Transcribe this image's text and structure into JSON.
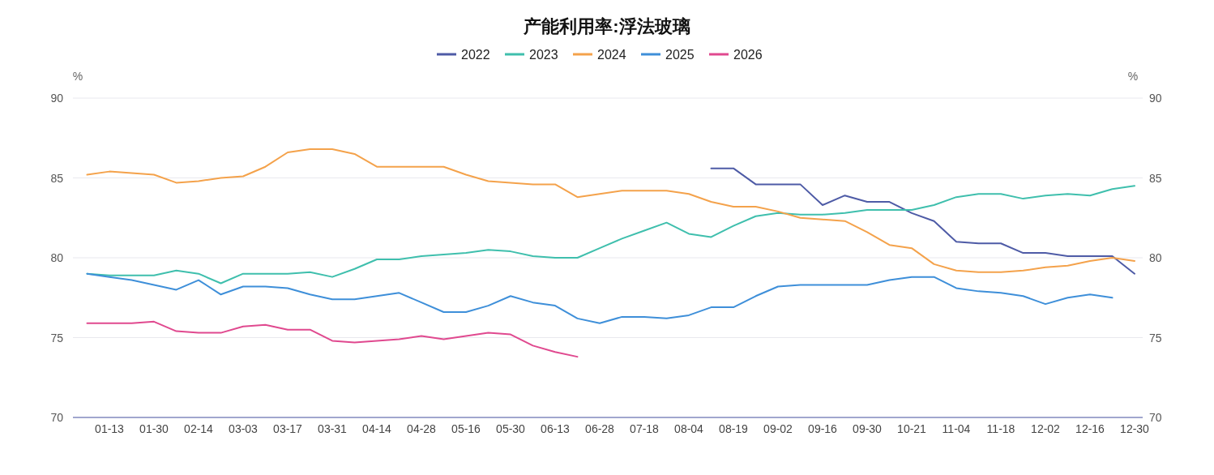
{
  "chart_data": {
    "type": "line",
    "title": "产能利用率:浮法玻璃",
    "categories": [
      null,
      "01-13",
      null,
      "01-30",
      null,
      "02-14",
      null,
      "03-03",
      null,
      "03-17",
      null,
      "03-31",
      null,
      "04-14",
      null,
      "04-28",
      null,
      "05-16",
      null,
      "05-30",
      null,
      "06-13",
      null,
      "06-28",
      null,
      "07-18",
      null,
      "08-04",
      null,
      "08-19",
      null,
      "09-02",
      null,
      "09-16",
      null,
      "09-30",
      null,
      "10-21",
      null,
      "11-04",
      null,
      "11-18",
      null,
      "12-02",
      null,
      "12-16",
      null,
      "12-30"
    ],
    "series": [
      {
        "name": "2022",
        "color": "#4e5ba6",
        "values": [
          null,
          null,
          null,
          null,
          null,
          null,
          null,
          null,
          null,
          null,
          null,
          null,
          null,
          null,
          null,
          null,
          null,
          null,
          null,
          null,
          null,
          null,
          null,
          null,
          null,
          null,
          null,
          null,
          85.6,
          85.6,
          84.6,
          84.6,
          84.6,
          83.3,
          83.9,
          83.5,
          83.5,
          82.8,
          82.3,
          81.0,
          80.9,
          80.9,
          80.3,
          80.3,
          80.1,
          80.1,
          80.1,
          79.0
        ]
      },
      {
        "name": "2023",
        "color": "#3fbfad",
        "values": [
          79.0,
          78.9,
          78.9,
          78.9,
          79.2,
          79.0,
          78.4,
          79.0,
          79.0,
          79.0,
          79.1,
          78.8,
          79.3,
          79.9,
          79.9,
          80.1,
          80.2,
          80.3,
          80.5,
          80.4,
          80.1,
          80.0,
          80.0,
          80.6,
          81.2,
          81.7,
          82.2,
          81.5,
          81.3,
          82.0,
          82.6,
          82.8,
          82.7,
          82.7,
          82.8,
          83.0,
          83.0,
          83.0,
          83.3,
          83.8,
          84.0,
          84.0,
          83.7,
          83.9,
          84.0,
          83.9,
          84.3,
          84.5
        ]
      },
      {
        "name": "2024",
        "color": "#f4a24b",
        "values": [
          85.2,
          85.4,
          85.3,
          85.2,
          84.7,
          84.8,
          85.0,
          85.1,
          85.7,
          86.6,
          86.8,
          86.8,
          86.5,
          85.7,
          85.7,
          85.7,
          85.7,
          85.2,
          84.8,
          84.7,
          84.6,
          84.6,
          83.8,
          84.0,
          84.2,
          84.2,
          84.2,
          84.0,
          83.5,
          83.2,
          83.2,
          82.9,
          82.5,
          82.4,
          82.3,
          81.6,
          80.8,
          80.6,
          79.6,
          79.2,
          79.1,
          79.1,
          79.2,
          79.4,
          79.5,
          79.8,
          80.0,
          79.8
        ]
      },
      {
        "name": "2025",
        "color": "#3e8fd9",
        "values": [
          79.0,
          78.8,
          78.6,
          78.3,
          78.0,
          78.6,
          77.7,
          78.2,
          78.2,
          78.1,
          77.7,
          77.4,
          77.4,
          77.6,
          77.8,
          77.2,
          76.6,
          76.6,
          77.0,
          77.6,
          77.2,
          77.0,
          76.2,
          75.9,
          76.3,
          76.3,
          76.2,
          76.4,
          76.9,
          76.9,
          77.6,
          78.2,
          78.3,
          78.3,
          78.3,
          78.3,
          78.6,
          78.8,
          78.8,
          78.1,
          77.9,
          77.8,
          77.6,
          77.1,
          77.5,
          77.7,
          77.5,
          null
        ]
      },
      {
        "name": "2026",
        "color": "#e0498f",
        "values": [
          75.9,
          75.9,
          75.9,
          76.0,
          75.4,
          75.3,
          75.3,
          75.7,
          75.8,
          75.5,
          75.5,
          74.8,
          74.7,
          74.8,
          74.9,
          75.1,
          74.9,
          75.1,
          75.3,
          75.2,
          74.5,
          74.1,
          73.8,
          null,
          null,
          null,
          null,
          null,
          null,
          null,
          null,
          null,
          null,
          null,
          null,
          null,
          null,
          null,
          null,
          null,
          null,
          null,
          null,
          null,
          null,
          null,
          null,
          null
        ]
      }
    ],
    "ylabel": "%",
    "y2label": "%",
    "ylim": [
      70,
      90
    ],
    "yticks": [
      70,
      75,
      80,
      85,
      90
    ],
    "y2lim": [
      70,
      90
    ],
    "y2ticks": [
      70,
      75,
      80,
      85,
      90
    ],
    "grid": "y",
    "legend": "top",
    "marker": "none",
    "line_style": "solid"
  }
}
